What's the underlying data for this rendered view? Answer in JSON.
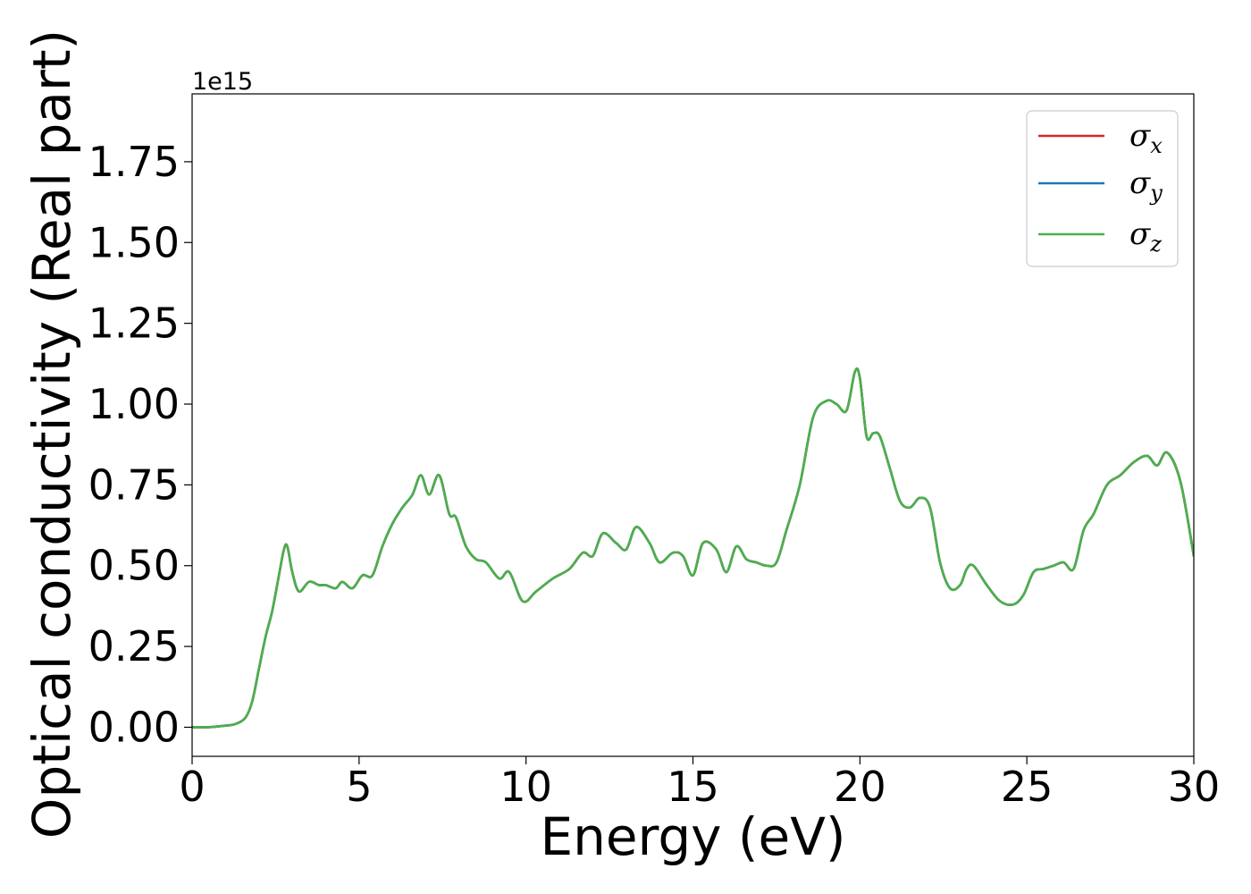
{
  "chart_data": {
    "type": "line",
    "title": "",
    "xlabel": "Energy (eV)",
    "ylabel": "Optical conductivity (Real part)",
    "y_offset_text": "1e15",
    "xlim": [
      0,
      30
    ],
    "ylim": [
      -0.09,
      1.96
    ],
    "y_scale_factor": 1000000000000000.0,
    "x_ticks": [
      0,
      5,
      10,
      15,
      20,
      25,
      30
    ],
    "x_tick_labels": [
      "0",
      "5",
      "10",
      "15",
      "20",
      "25",
      "30"
    ],
    "y_ticks": [
      0.0,
      0.25,
      0.5,
      0.75,
      1.0,
      1.25,
      1.5,
      1.75
    ],
    "y_tick_labels": [
      "0.00",
      "0.25",
      "0.50",
      "0.75",
      "1.00",
      "1.25",
      "1.50",
      "1.75"
    ],
    "grid": false,
    "legend_position": "top-right",
    "series": [
      {
        "name": "σ_x",
        "legend_main": "σ",
        "legend_sub": "x",
        "color": "#d62728",
        "x": [
          0,
          0.5,
          1.0,
          1.3,
          1.6,
          1.8,
          2.0,
          2.2,
          2.4,
          2.6,
          2.75,
          2.85,
          3.0,
          3.2,
          3.5,
          3.8,
          4.0,
          4.3,
          4.5,
          4.8,
          5.1,
          5.4,
          5.7,
          6.0,
          6.3,
          6.6,
          6.85,
          7.1,
          7.4,
          7.7,
          7.9,
          8.2,
          8.5,
          8.8,
          9.2,
          9.5,
          9.9,
          10.3,
          10.8,
          11.3,
          11.7,
          12.0,
          12.3,
          12.7,
          13.0,
          13.3,
          13.7,
          14.0,
          14.4,
          14.7,
          15.0,
          15.3,
          15.7,
          16.0,
          16.3,
          16.6,
          16.9,
          17.2,
          17.5,
          17.8,
          18.2,
          18.6,
          19.0,
          19.3,
          19.6,
          19.85,
          20.0,
          20.2,
          20.4,
          20.6,
          20.9,
          21.2,
          21.5,
          21.8,
          22.1,
          22.4,
          22.7,
          23.0,
          23.2,
          23.4,
          23.8,
          24.2,
          24.6,
          24.9,
          25.2,
          25.5,
          25.8,
          26.1,
          26.4,
          26.7,
          27.0,
          27.4,
          27.8,
          28.2,
          28.6,
          28.9,
          29.2,
          29.6,
          30.0
        ],
        "y": [
          0.0,
          0.0,
          0.005,
          0.01,
          0.03,
          0.08,
          0.18,
          0.28,
          0.36,
          0.47,
          0.55,
          0.56,
          0.48,
          0.42,
          0.45,
          0.44,
          0.44,
          0.43,
          0.45,
          0.43,
          0.47,
          0.47,
          0.56,
          0.63,
          0.68,
          0.72,
          0.78,
          0.72,
          0.78,
          0.66,
          0.65,
          0.56,
          0.52,
          0.51,
          0.46,
          0.48,
          0.39,
          0.42,
          0.46,
          0.49,
          0.54,
          0.53,
          0.6,
          0.57,
          0.55,
          0.62,
          0.57,
          0.51,
          0.54,
          0.53,
          0.47,
          0.57,
          0.55,
          0.48,
          0.56,
          0.52,
          0.51,
          0.5,
          0.51,
          0.61,
          0.75,
          0.96,
          1.01,
          1.0,
          0.98,
          1.1,
          1.08,
          0.9,
          0.91,
          0.9,
          0.8,
          0.7,
          0.68,
          0.71,
          0.68,
          0.51,
          0.43,
          0.44,
          0.49,
          0.5,
          0.44,
          0.39,
          0.38,
          0.41,
          0.48,
          0.49,
          0.5,
          0.51,
          0.49,
          0.61,
          0.66,
          0.75,
          0.78,
          0.82,
          0.84,
          0.81,
          0.85,
          0.76,
          0.53
        ]
      },
      {
        "name": "σ_y",
        "legend_main": "σ",
        "legend_sub": "y",
        "color": "#1f77b4",
        "x": [
          0,
          0.5,
          1.0,
          1.3,
          1.6,
          1.8,
          2.0,
          2.2,
          2.4,
          2.6,
          2.75,
          2.85,
          3.0,
          3.2,
          3.5,
          3.8,
          4.0,
          4.3,
          4.5,
          4.8,
          5.1,
          5.4,
          5.7,
          6.0,
          6.3,
          6.6,
          6.85,
          7.1,
          7.4,
          7.7,
          7.9,
          8.2,
          8.5,
          8.8,
          9.2,
          9.5,
          9.9,
          10.3,
          10.8,
          11.3,
          11.7,
          12.0,
          12.3,
          12.7,
          13.0,
          13.3,
          13.7,
          14.0,
          14.4,
          14.7,
          15.0,
          15.3,
          15.7,
          16.0,
          16.3,
          16.6,
          16.9,
          17.2,
          17.5,
          17.8,
          18.2,
          18.6,
          19.0,
          19.3,
          19.6,
          19.85,
          20.0,
          20.2,
          20.4,
          20.6,
          20.9,
          21.2,
          21.5,
          21.8,
          22.1,
          22.4,
          22.7,
          23.0,
          23.2,
          23.4,
          23.8,
          24.2,
          24.6,
          24.9,
          25.2,
          25.5,
          25.8,
          26.1,
          26.4,
          26.7,
          27.0,
          27.4,
          27.8,
          28.2,
          28.6,
          28.9,
          29.2,
          29.6,
          30.0
        ],
        "y": [
          0.0,
          0.0,
          0.005,
          0.01,
          0.03,
          0.08,
          0.18,
          0.28,
          0.36,
          0.47,
          0.55,
          0.56,
          0.48,
          0.42,
          0.45,
          0.44,
          0.44,
          0.43,
          0.45,
          0.43,
          0.47,
          0.47,
          0.56,
          0.63,
          0.68,
          0.72,
          0.78,
          0.72,
          0.78,
          0.66,
          0.65,
          0.56,
          0.52,
          0.51,
          0.46,
          0.48,
          0.39,
          0.42,
          0.46,
          0.49,
          0.54,
          0.53,
          0.6,
          0.57,
          0.55,
          0.62,
          0.57,
          0.51,
          0.54,
          0.53,
          0.47,
          0.57,
          0.55,
          0.48,
          0.56,
          0.52,
          0.51,
          0.5,
          0.51,
          0.61,
          0.75,
          0.96,
          1.01,
          1.0,
          0.98,
          1.1,
          1.08,
          0.9,
          0.91,
          0.9,
          0.8,
          0.7,
          0.68,
          0.71,
          0.68,
          0.51,
          0.43,
          0.44,
          0.49,
          0.5,
          0.44,
          0.39,
          0.38,
          0.41,
          0.48,
          0.49,
          0.5,
          0.51,
          0.49,
          0.61,
          0.66,
          0.75,
          0.78,
          0.82,
          0.84,
          0.81,
          0.85,
          0.76,
          0.53
        ]
      },
      {
        "name": "σ_z",
        "legend_main": "σ",
        "legend_sub": "z",
        "color": "#4daf4a",
        "x": [
          0,
          0.5,
          1.0,
          1.3,
          1.6,
          1.8,
          2.0,
          2.2,
          2.4,
          2.6,
          2.75,
          2.85,
          3.0,
          3.2,
          3.5,
          3.8,
          4.0,
          4.3,
          4.5,
          4.8,
          5.1,
          5.4,
          5.7,
          6.0,
          6.3,
          6.6,
          6.85,
          7.1,
          7.4,
          7.7,
          7.9,
          8.2,
          8.5,
          8.8,
          9.2,
          9.5,
          9.9,
          10.3,
          10.8,
          11.3,
          11.7,
          12.0,
          12.3,
          12.7,
          13.0,
          13.3,
          13.7,
          14.0,
          14.4,
          14.7,
          15.0,
          15.3,
          15.7,
          16.0,
          16.3,
          16.6,
          16.9,
          17.2,
          17.5,
          17.8,
          18.2,
          18.6,
          19.0,
          19.3,
          19.6,
          19.85,
          20.0,
          20.2,
          20.4,
          20.6,
          20.9,
          21.2,
          21.5,
          21.8,
          22.1,
          22.4,
          22.7,
          23.0,
          23.2,
          23.4,
          23.8,
          24.2,
          24.6,
          24.9,
          25.2,
          25.5,
          25.8,
          26.1,
          26.4,
          26.7,
          27.0,
          27.4,
          27.8,
          28.2,
          28.6,
          28.9,
          29.2,
          29.6,
          30.0
        ],
        "y": [
          0.0,
          0.0,
          0.005,
          0.01,
          0.03,
          0.08,
          0.18,
          0.28,
          0.36,
          0.47,
          0.55,
          0.56,
          0.48,
          0.42,
          0.45,
          0.44,
          0.44,
          0.43,
          0.45,
          0.43,
          0.47,
          0.47,
          0.56,
          0.63,
          0.68,
          0.72,
          0.78,
          0.72,
          0.78,
          0.66,
          0.65,
          0.56,
          0.52,
          0.51,
          0.46,
          0.48,
          0.39,
          0.42,
          0.46,
          0.49,
          0.54,
          0.53,
          0.6,
          0.57,
          0.55,
          0.62,
          0.57,
          0.51,
          0.54,
          0.53,
          0.47,
          0.57,
          0.55,
          0.48,
          0.56,
          0.52,
          0.51,
          0.5,
          0.51,
          0.61,
          0.75,
          0.96,
          1.01,
          1.0,
          0.98,
          1.1,
          1.08,
          0.9,
          0.91,
          0.9,
          0.8,
          0.7,
          0.68,
          0.71,
          0.68,
          0.51,
          0.43,
          0.44,
          0.49,
          0.5,
          0.44,
          0.39,
          0.38,
          0.41,
          0.48,
          0.49,
          0.5,
          0.51,
          0.49,
          0.61,
          0.66,
          0.75,
          0.78,
          0.82,
          0.84,
          0.81,
          0.85,
          0.76,
          0.53
        ]
      }
    ]
  }
}
